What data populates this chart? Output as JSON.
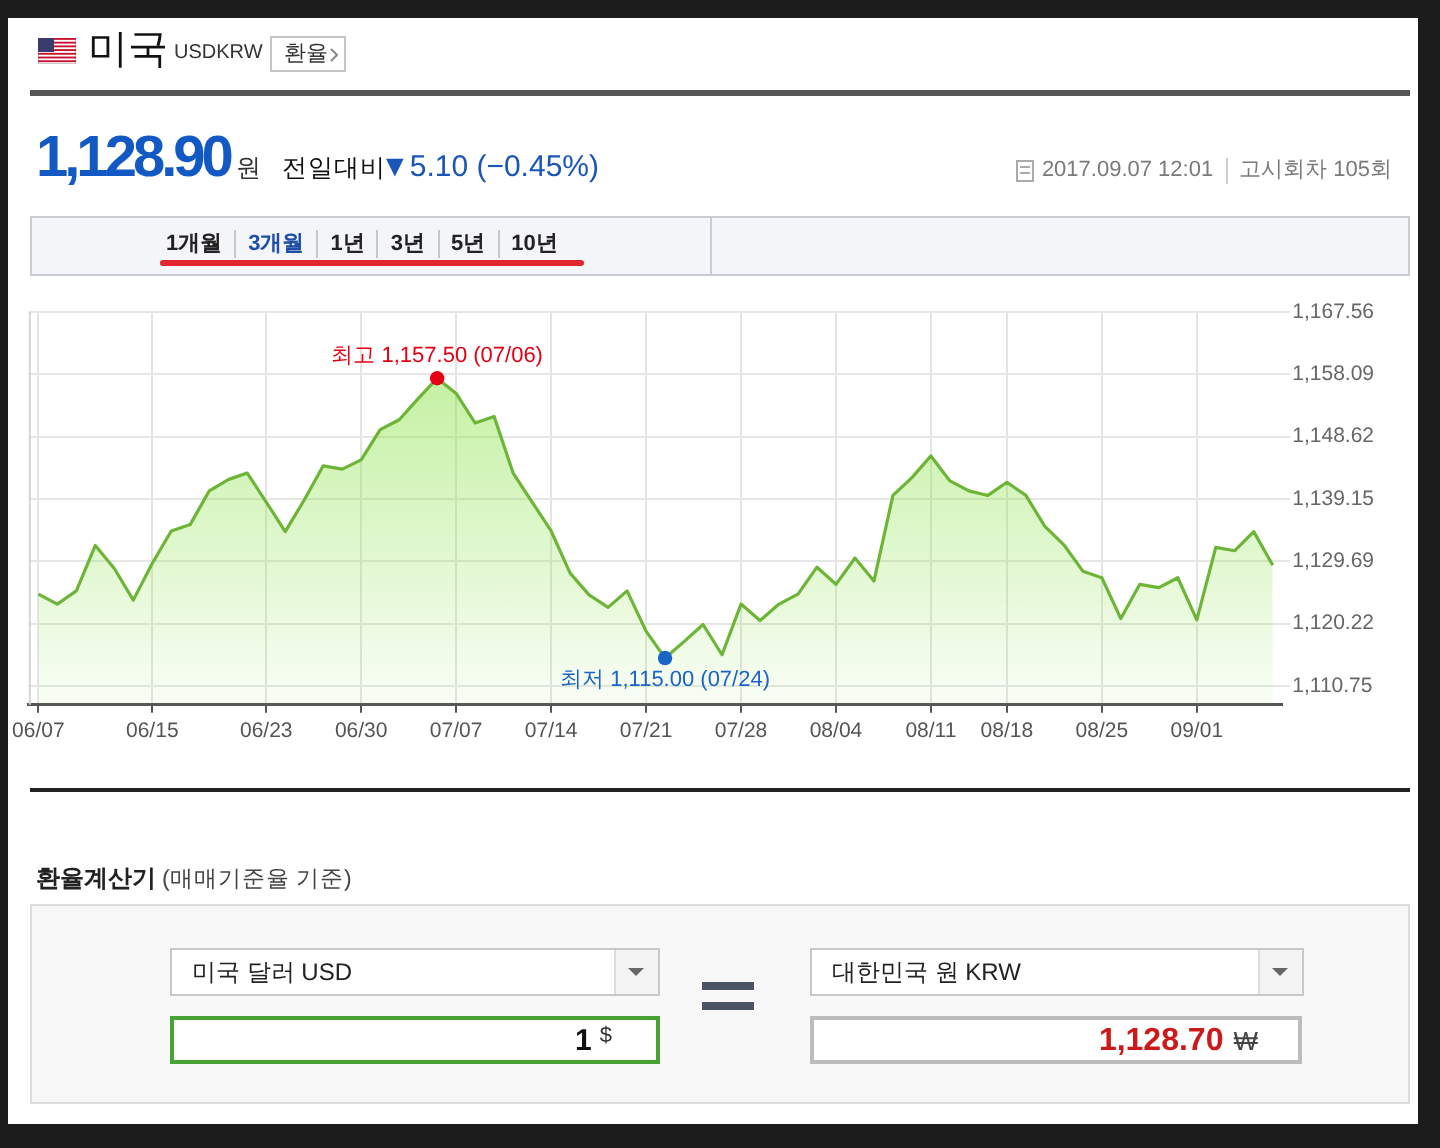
{
  "chart_data": {
    "type": "area",
    "title": "미국",
    "subtitle": "USDKRW",
    "categories": [
      "06/07",
      null,
      null,
      null,
      null,
      null,
      "06/15",
      null,
      null,
      null,
      null,
      null,
      "06/23",
      null,
      null,
      null,
      null,
      "06/30",
      null,
      null,
      null,
      null,
      "07/07",
      null,
      null,
      null,
      null,
      "07/14",
      null,
      null,
      null,
      null,
      "07/21",
      null,
      null,
      null,
      null,
      "07/28",
      null,
      null,
      null,
      null,
      "08/04",
      null,
      null,
      null,
      null,
      "08/11",
      null,
      null,
      null,
      "08/18",
      null,
      null,
      null,
      null,
      "08/25",
      null,
      null,
      null,
      null,
      "09/01",
      null,
      null,
      null,
      null
    ],
    "series": [
      {
        "type": "area",
        "color": "#6db536",
        "values": [
          1124.7,
          1123.2,
          1125.2,
          1132.1,
          1128.6,
          1123.8,
          1129.4,
          1134.3,
          1135.3,
          1140.4,
          1142.1,
          1143.1,
          1138.7,
          1134.2,
          1139.0,
          1144.2,
          1143.7,
          1145.1,
          1149.7,
          1151.2,
          1154.4,
          1157.5,
          1155.2,
          1150.7,
          1151.7,
          1143.1,
          1138.7,
          1134.3,
          1127.9,
          1124.6,
          1122.7,
          1125.2,
          1119.1,
          1115.0,
          1117.5,
          1120.1,
          1115.5,
          1123.2,
          1120.7,
          1123.2,
          1124.7,
          1128.8,
          1126.2,
          1130.2,
          1126.7,
          1139.7,
          1142.4,
          1145.7,
          1141.9,
          1140.4,
          1139.7,
          1141.7,
          1139.7,
          1135.0,
          1132.2,
          1128.2,
          1127.2,
          1121.0,
          1126.2,
          1125.7,
          1127.2,
          1120.8,
          1131.8,
          1131.3,
          1134.2,
          1129.1
        ]
      },
      {
        "type": "scatter",
        "color": "#e60013",
        "marker": "circle",
        "values": [
          null,
          null,
          null,
          null,
          null,
          null,
          null,
          null,
          null,
          null,
          null,
          null,
          null,
          null,
          null,
          null,
          null,
          null,
          null,
          null,
          null,
          1157.5,
          null,
          null,
          null,
          null,
          null,
          null,
          null,
          null,
          null,
          null,
          null,
          null,
          null,
          null,
          null,
          null,
          null,
          null,
          null,
          null,
          null,
          null,
          null,
          null,
          null,
          null,
          null,
          null,
          null,
          null,
          null,
          null,
          null,
          null,
          null,
          null,
          null,
          null,
          null,
          null,
          null,
          null,
          null,
          null
        ]
      },
      {
        "type": "scatter",
        "color": "#1a64c8",
        "marker": "circle",
        "values": [
          null,
          null,
          null,
          null,
          null,
          null,
          null,
          null,
          null,
          null,
          null,
          null,
          null,
          null,
          null,
          null,
          null,
          null,
          null,
          null,
          null,
          null,
          null,
          null,
          null,
          null,
          null,
          null,
          null,
          null,
          null,
          null,
          null,
          1115.0,
          null,
          null,
          null,
          null,
          null,
          null,
          null,
          null,
          null,
          null,
          null,
          null,
          null,
          null,
          null,
          null,
          null,
          null,
          null,
          null,
          null,
          null,
          null,
          null,
          null,
          null,
          null,
          null,
          null,
          null,
          null,
          null
        ]
      }
    ],
    "ylim": [
      1107.9,
      1167.56
    ],
    "yticks": [
      {
        "value": 1110.75,
        "label": "1,110.75"
      },
      {
        "value": 1120.22,
        "label": "1,120.22"
      },
      {
        "value": 1129.69,
        "label": "1,129.69"
      },
      {
        "value": 1139.15,
        "label": "1,139.15"
      },
      {
        "value": 1148.62,
        "label": "1,148.62"
      },
      {
        "value": 1158.09,
        "label": "1,158.09"
      },
      {
        "value": 1167.56,
        "label": "1,167.56"
      }
    ],
    "grid": true,
    "annotations": [
      "환율",
      "1,128.90",
      "원",
      "전일대비",
      "▼5.10 (−0.45%)",
      "2017.09.07 12:01",
      "고시회차 105회",
      "1개월",
      "3개월",
      "1년",
      "3년",
      "5년",
      "10년",
      "환율계산기",
      "(매매기준율 기준)",
      "미국 달러 USD",
      "대한민국 원 KRW",
      "1",
      "$",
      "1,128.70",
      "₩",
      {
        "text": "최고 1,157.50 (07/06)",
        "y": 1157.5
      },
      {
        "text": "최저 1,115.00 (07/24)",
        "y": 1115.0
      }
    ]
  }
}
